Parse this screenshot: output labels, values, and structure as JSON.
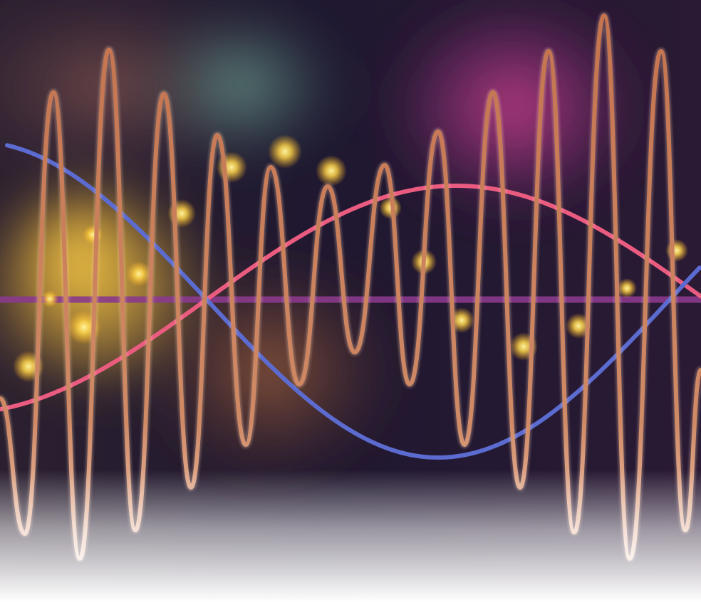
{
  "artwork": {
    "subject": "abstract-waveform-illustration",
    "colors": {
      "background_dark": "#1c1530",
      "background_mid": "#2a1c3a",
      "glow_yellow": "#f2c443",
      "glow_teal": "#5f8f86",
      "glow_magenta": "#c13b8a",
      "glow_amber": "#b36a3a",
      "oscillating_wave": "#c87a58",
      "oscillating_wave_highlight": "#e8a985",
      "pink_wave": "#e85a7c",
      "blue_wave": "#5a68c8",
      "axis_line": "#8a3a8c",
      "sparkle": "#ffd54a",
      "fade_bottom": "#ffffff"
    },
    "waves": [
      {
        "name": "oscillating-wave",
        "kind": "amplitude-modulated sine"
      },
      {
        "name": "pink-wave",
        "kind": "slow sine rising"
      },
      {
        "name": "blue-wave",
        "kind": "slow sine falling"
      },
      {
        "name": "axis-line",
        "kind": "horizontal baseline"
      }
    ],
    "sparkle_count": 16
  }
}
